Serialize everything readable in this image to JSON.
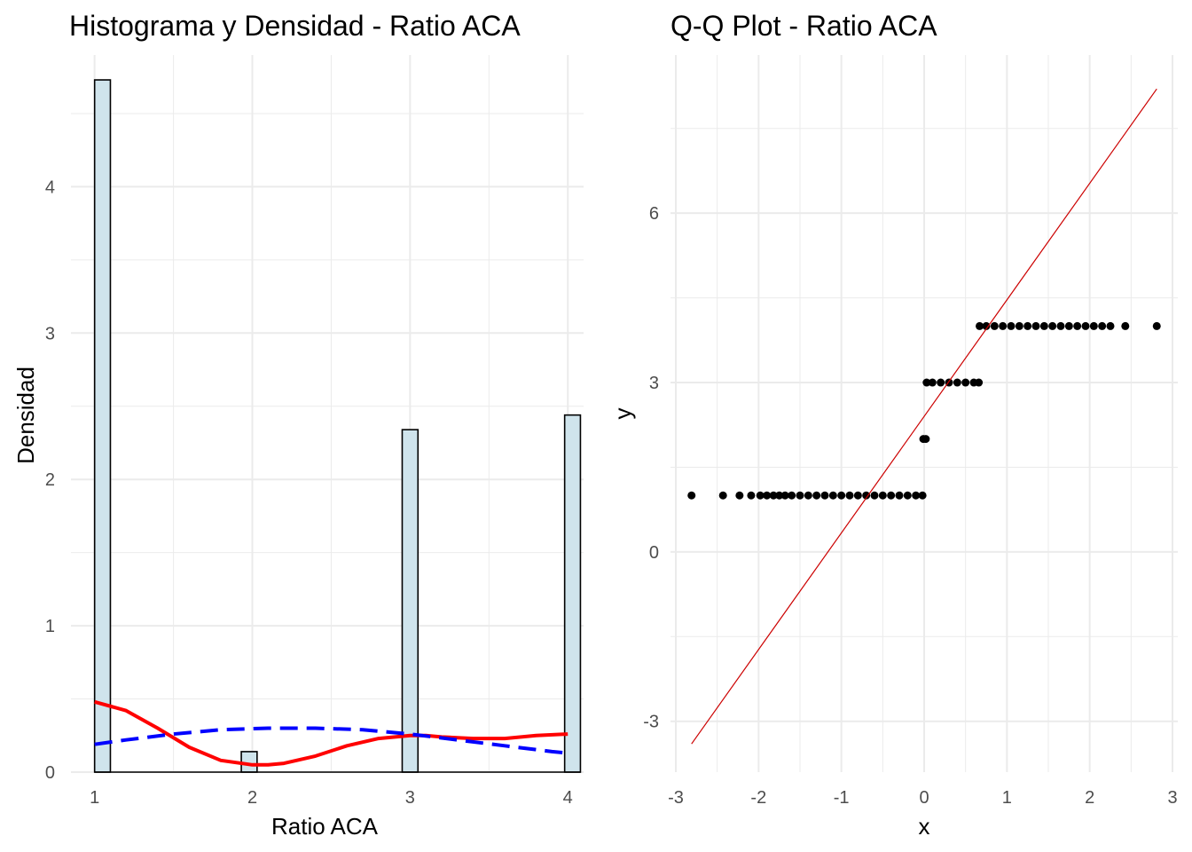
{
  "panels": {
    "left": {
      "title": "Histograma y Densidad - Ratio ACA",
      "xlabel": "Ratio ACA",
      "ylabel": "Densidad",
      "xticks": [
        "1",
        "2",
        "3",
        "4"
      ],
      "yticks": [
        "0",
        "1",
        "2",
        "3",
        "4"
      ]
    },
    "right": {
      "title": "Q-Q Plot - Ratio ACA",
      "xlabel": "x",
      "ylabel": "y",
      "xticks": [
        "-3",
        "-2",
        "-1",
        "0",
        "1",
        "2",
        "3"
      ],
      "yticks": [
        "-3",
        "0",
        "3",
        "6"
      ]
    }
  },
  "colors": {
    "bar_fill": "#cfe4ec",
    "bar_stroke": "#000000",
    "density_kernel": "#ff0000",
    "density_normal": "#0000ff",
    "qq_points": "#000000",
    "qq_line": "#cc0000",
    "grid": "#ebebeb"
  },
  "chart_data": [
    {
      "type": "bar",
      "title": "Histograma y Densidad - Ratio ACA",
      "xlabel": "Ratio ACA",
      "ylabel": "Densidad",
      "xlim": [
        0.85,
        4.1
      ],
      "ylim": [
        0,
        4.9
      ],
      "bin_width": 0.1,
      "bins": [
        {
          "x0": 1.0,
          "x1": 1.1,
          "density": 4.73
        },
        {
          "x0": 1.93,
          "x1": 2.03,
          "density": 0.14
        },
        {
          "x0": 2.95,
          "x1": 3.05,
          "density": 2.34
        },
        {
          "x0": 3.98,
          "x1": 4.08,
          "density": 2.44
        }
      ],
      "overlays": [
        {
          "type": "line",
          "style": "solid",
          "x": [
            1.0,
            1.2,
            1.4,
            1.6,
            1.8,
            2.0,
            2.1,
            2.2,
            2.4,
            2.6,
            2.8,
            3.0,
            3.1,
            3.2,
            3.4,
            3.6,
            3.8,
            4.0
          ],
          "y": [
            0.48,
            0.42,
            0.3,
            0.17,
            0.08,
            0.05,
            0.05,
            0.06,
            0.11,
            0.18,
            0.23,
            0.25,
            0.25,
            0.24,
            0.23,
            0.23,
            0.25,
            0.26
          ]
        },
        {
          "type": "line",
          "style": "dashed",
          "x": [
            1.0,
            1.2,
            1.5,
            1.8,
            2.1,
            2.4,
            2.7,
            3.0,
            3.3,
            3.6,
            3.9,
            4.0
          ],
          "y": [
            0.19,
            0.22,
            0.26,
            0.29,
            0.3,
            0.3,
            0.29,
            0.26,
            0.22,
            0.18,
            0.14,
            0.13
          ]
        }
      ]
    },
    {
      "type": "scatter",
      "title": "Q-Q Plot - Ratio ACA",
      "xlabel": "x",
      "ylabel": "y",
      "xlim": [
        -3.0,
        3.0
      ],
      "ylim": [
        -3.9,
        8.8
      ],
      "points": [
        {
          "x": -2.81,
          "y": 1
        },
        {
          "x": -2.43,
          "y": 1
        },
        {
          "x": -2.23,
          "y": 1
        },
        {
          "x": -2.09,
          "y": 1
        },
        {
          "x": -1.98,
          "y": 1
        },
        {
          "x": -1.9,
          "y": 1
        },
        {
          "x": -1.82,
          "y": 1
        },
        {
          "x": -1.75,
          "y": 1
        },
        {
          "x": -1.68,
          "y": 1
        },
        {
          "x": -1.6,
          "y": 1
        },
        {
          "x": -1.5,
          "y": 1
        },
        {
          "x": -1.4,
          "y": 1
        },
        {
          "x": -1.3,
          "y": 1
        },
        {
          "x": -1.2,
          "y": 1
        },
        {
          "x": -1.1,
          "y": 1
        },
        {
          "x": -1.0,
          "y": 1
        },
        {
          "x": -0.9,
          "y": 1
        },
        {
          "x": -0.8,
          "y": 1
        },
        {
          "x": -0.7,
          "y": 1
        },
        {
          "x": -0.6,
          "y": 1
        },
        {
          "x": -0.5,
          "y": 1
        },
        {
          "x": -0.4,
          "y": 1
        },
        {
          "x": -0.3,
          "y": 1
        },
        {
          "x": -0.2,
          "y": 1
        },
        {
          "x": -0.1,
          "y": 1
        },
        {
          "x": -0.02,
          "y": 1
        },
        {
          "x": -0.01,
          "y": 2
        },
        {
          "x": 0.02,
          "y": 2
        },
        {
          "x": 0.03,
          "y": 3
        },
        {
          "x": 0.1,
          "y": 3
        },
        {
          "x": 0.2,
          "y": 3
        },
        {
          "x": 0.3,
          "y": 3
        },
        {
          "x": 0.4,
          "y": 3
        },
        {
          "x": 0.5,
          "y": 3
        },
        {
          "x": 0.6,
          "y": 3
        },
        {
          "x": 0.66,
          "y": 3
        },
        {
          "x": 0.67,
          "y": 4
        },
        {
          "x": 0.75,
          "y": 4
        },
        {
          "x": 0.85,
          "y": 4
        },
        {
          "x": 0.95,
          "y": 4
        },
        {
          "x": 1.05,
          "y": 4
        },
        {
          "x": 1.15,
          "y": 4
        },
        {
          "x": 1.25,
          "y": 4
        },
        {
          "x": 1.35,
          "y": 4
        },
        {
          "x": 1.45,
          "y": 4
        },
        {
          "x": 1.55,
          "y": 4
        },
        {
          "x": 1.65,
          "y": 4
        },
        {
          "x": 1.75,
          "y": 4
        },
        {
          "x": 1.85,
          "y": 4
        },
        {
          "x": 1.95,
          "y": 4
        },
        {
          "x": 2.05,
          "y": 4
        },
        {
          "x": 2.15,
          "y": 4
        },
        {
          "x": 2.25,
          "y": 4
        },
        {
          "x": 2.43,
          "y": 4
        },
        {
          "x": 2.81,
          "y": 4
        }
      ],
      "reference_line": {
        "x": [
          -2.81,
          2.81
        ],
        "y": [
          -3.4,
          8.2
        ]
      }
    }
  ]
}
